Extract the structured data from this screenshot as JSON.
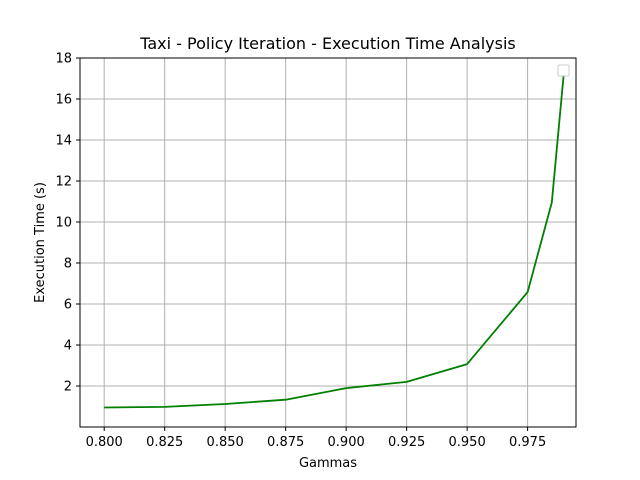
{
  "chart_data": {
    "type": "line",
    "title": "Taxi - Policy Iteration - Execution Time Analysis",
    "xlabel": "Gammas",
    "ylabel": "Execution Time (s)",
    "xlim": [
      0.79,
      0.995
    ],
    "ylim": [
      0.0,
      18.0
    ],
    "xticks": [
      0.8,
      0.825,
      0.85,
      0.875,
      0.9,
      0.925,
      0.95,
      0.975
    ],
    "xtick_labels": [
      "0.800",
      "0.825",
      "0.850",
      "0.875",
      "0.900",
      "0.925",
      "0.950",
      "0.975"
    ],
    "yticks": [
      2,
      4,
      6,
      8,
      10,
      12,
      14,
      16,
      18
    ],
    "ytick_labels": [
      "2",
      "4",
      "6",
      "8",
      "10",
      "12",
      "14",
      "16",
      "18"
    ],
    "grid": true,
    "legend": "top-right, empty",
    "series": [
      {
        "color": "#008000",
        "x": [
          0.8,
          0.825,
          0.85,
          0.875,
          0.9,
          0.925,
          0.95,
          0.975,
          0.985,
          0.99
        ],
        "y": [
          0.95,
          0.98,
          1.12,
          1.33,
          1.9,
          2.2,
          3.07,
          6.58,
          10.95,
          17.3
        ]
      }
    ]
  }
}
